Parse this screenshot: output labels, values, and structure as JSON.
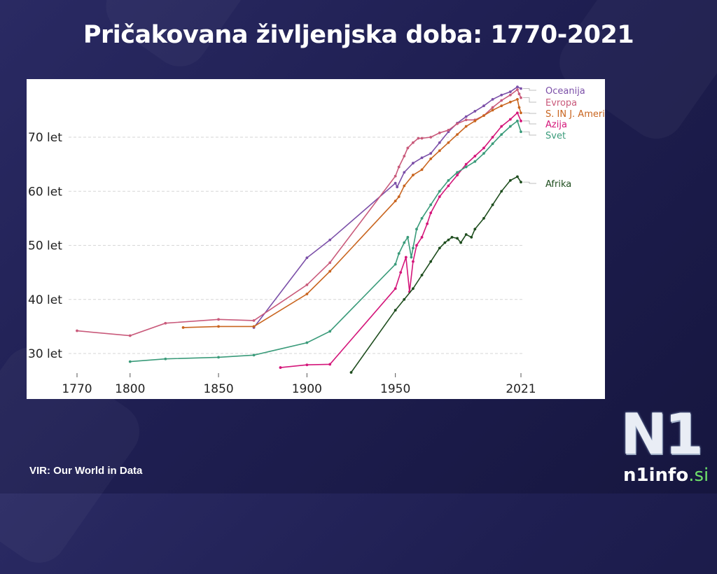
{
  "title": "Pričakovana življenjska doba: 1770-2021",
  "source": "VIR: Our World in Data",
  "logo": {
    "mark": "N1",
    "site": "n1info",
    "tld": ".si"
  },
  "chart_data": {
    "type": "line",
    "title": "Pričakovana življenjska doba: 1770-2021",
    "xlim": [
      1770,
      2021
    ],
    "ylim": [
      26,
      80
    ],
    "x_ticks": [
      "1770",
      "1800",
      "1850",
      "1900",
      "1950",
      "2021"
    ],
    "y_ticks": [
      "30 let",
      "40 let",
      "50 let",
      "60 let",
      "70 let"
    ],
    "grid": "horizontal dashed",
    "legend": "line end labels on the right",
    "series": [
      {
        "name": "Oceanija",
        "color": "#7b4fa8",
        "points": [
          [
            1870,
            34.8
          ],
          [
            1900,
            47.7
          ],
          [
            1913,
            51.0
          ],
          [
            1950,
            61.5
          ],
          [
            1951,
            60.8
          ],
          [
            1955,
            63.5
          ],
          [
            1960,
            65.2
          ],
          [
            1965,
            66.2
          ],
          [
            1970,
            67.0
          ],
          [
            1975,
            69.0
          ],
          [
            1980,
            71.0
          ],
          [
            1985,
            72.6
          ],
          [
            1990,
            73.8
          ],
          [
            1995,
            74.8
          ],
          [
            2000,
            75.8
          ],
          [
            2005,
            77.0
          ],
          [
            2010,
            77.8
          ],
          [
            2015,
            78.4
          ],
          [
            2019,
            79.3
          ],
          [
            2021,
            79.0
          ]
        ]
      },
      {
        "name": "Evropa",
        "color": "#c95a7b",
        "points": [
          [
            1770,
            34.2
          ],
          [
            1800,
            33.3
          ],
          [
            1820,
            35.6
          ],
          [
            1850,
            36.3
          ],
          [
            1870,
            36.1
          ],
          [
            1900,
            42.7
          ],
          [
            1913,
            46.8
          ],
          [
            1950,
            62.8
          ],
          [
            1952,
            64.5
          ],
          [
            1955,
            66.5
          ],
          [
            1957,
            68.0
          ],
          [
            1960,
            69.0
          ],
          [
            1963,
            69.8
          ],
          [
            1965,
            69.8
          ],
          [
            1970,
            70.0
          ],
          [
            1975,
            70.8
          ],
          [
            1980,
            71.3
          ],
          [
            1985,
            72.5
          ],
          [
            1990,
            73.2
          ],
          [
            1995,
            73.2
          ],
          [
            2000,
            74.0
          ],
          [
            2005,
            75.5
          ],
          [
            2010,
            76.8
          ],
          [
            2015,
            77.8
          ],
          [
            2019,
            78.8
          ],
          [
            2020,
            78.0
          ],
          [
            2021,
            77.3
          ]
        ]
      },
      {
        "name": "S. IN J. Amerika",
        "color": "#c9651f",
        "points": [
          [
            1830,
            34.8
          ],
          [
            1850,
            35.0
          ],
          [
            1870,
            35.0
          ],
          [
            1900,
            41.0
          ],
          [
            1913,
            45.2
          ],
          [
            1950,
            58.2
          ],
          [
            1952,
            59.0
          ],
          [
            1955,
            61.0
          ],
          [
            1960,
            63.0
          ],
          [
            1965,
            64.0
          ],
          [
            1970,
            66.0
          ],
          [
            1975,
            67.5
          ],
          [
            1980,
            69.0
          ],
          [
            1985,
            70.5
          ],
          [
            1990,
            72.0
          ],
          [
            1995,
            73.0
          ],
          [
            2000,
            74.0
          ],
          [
            2005,
            75.0
          ],
          [
            2010,
            75.8
          ],
          [
            2015,
            76.5
          ],
          [
            2019,
            77.0
          ],
          [
            2020,
            75.5
          ],
          [
            2021,
            74.5
          ]
        ]
      },
      {
        "name": "Azija",
        "color": "#d4167a",
        "points": [
          [
            1885,
            27.4
          ],
          [
            1900,
            27.9
          ],
          [
            1913,
            28.0
          ],
          [
            1950,
            42.0
          ],
          [
            1953,
            45.0
          ],
          [
            1956,
            47.8
          ],
          [
            1958,
            41.4
          ],
          [
            1960,
            47.0
          ],
          [
            1962,
            50.0
          ],
          [
            1965,
            51.5
          ],
          [
            1968,
            54.0
          ],
          [
            1970,
            56.0
          ],
          [
            1975,
            59.0
          ],
          [
            1980,
            61.0
          ],
          [
            1985,
            63.0
          ],
          [
            1990,
            65.0
          ],
          [
            1995,
            66.5
          ],
          [
            2000,
            68.0
          ],
          [
            2005,
            70.0
          ],
          [
            2010,
            72.0
          ],
          [
            2015,
            73.3
          ],
          [
            2019,
            74.5
          ],
          [
            2021,
            73.0
          ]
        ]
      },
      {
        "name": "Svet",
        "color": "#3a9b7a",
        "points": [
          [
            1800,
            28.5
          ],
          [
            1820,
            29.0
          ],
          [
            1850,
            29.3
          ],
          [
            1870,
            29.7
          ],
          [
            1900,
            32.0
          ],
          [
            1913,
            34.1
          ],
          [
            1950,
            46.5
          ],
          [
            1952,
            48.5
          ],
          [
            1955,
            50.5
          ],
          [
            1957,
            51.5
          ],
          [
            1959,
            47.8
          ],
          [
            1960,
            49.5
          ],
          [
            1962,
            53.0
          ],
          [
            1965,
            55.0
          ],
          [
            1970,
            57.5
          ],
          [
            1975,
            60.0
          ],
          [
            1980,
            62.0
          ],
          [
            1985,
            63.5
          ],
          [
            1990,
            64.5
          ],
          [
            1995,
            65.5
          ],
          [
            2000,
            67.0
          ],
          [
            2005,
            68.8
          ],
          [
            2010,
            70.5
          ],
          [
            2015,
            72.0
          ],
          [
            2019,
            73.0
          ],
          [
            2021,
            71.0
          ]
        ]
      },
      {
        "name": "Afrika",
        "color": "#1e4d1e",
        "points": [
          [
            1925,
            26.5
          ],
          [
            1950,
            38.0
          ],
          [
            1955,
            40.0
          ],
          [
            1960,
            42.0
          ],
          [
            1965,
            44.5
          ],
          [
            1970,
            47.0
          ],
          [
            1975,
            49.5
          ],
          [
            1978,
            50.5
          ],
          [
            1980,
            51.0
          ],
          [
            1982,
            51.5
          ],
          [
            1985,
            51.3
          ],
          [
            1987,
            50.5
          ],
          [
            1990,
            52.0
          ],
          [
            1993,
            51.5
          ],
          [
            1995,
            53.0
          ],
          [
            2000,
            55.0
          ],
          [
            2005,
            57.5
          ],
          [
            2010,
            60.0
          ],
          [
            2015,
            62.0
          ],
          [
            2019,
            62.7
          ],
          [
            2021,
            61.7
          ]
        ]
      }
    ]
  }
}
